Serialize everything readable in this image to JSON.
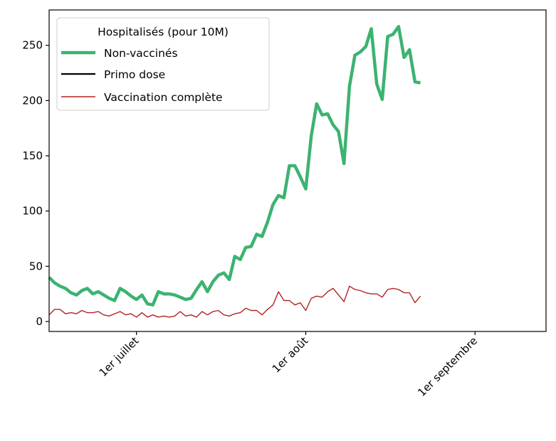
{
  "chart_data": {
    "type": "line",
    "legend": {
      "title": "Hospitalisés (pour 10M)",
      "placement": "top-left"
    },
    "xlim": [
      "2021-06-15",
      "2021-09-14"
    ],
    "ylim": [
      -9,
      282
    ],
    "grid": false,
    "x_ticks": [
      {
        "date": "2021-07-01",
        "label": "1er juillet"
      },
      {
        "date": "2021-08-01",
        "label": "1er août"
      },
      {
        "date": "2021-09-01",
        "label": "1er septembre"
      }
    ],
    "y_ticks": [
      0,
      50,
      100,
      150,
      200,
      250
    ],
    "series": [
      {
        "name": "Non-vaccinés",
        "color": "#3cb371",
        "x": [
          "2021-06-15",
          "2021-06-16",
          "2021-06-17",
          "2021-06-18",
          "2021-06-19",
          "2021-06-20",
          "2021-06-21",
          "2021-06-22",
          "2021-06-23",
          "2021-06-24",
          "2021-06-25",
          "2021-06-26",
          "2021-06-27",
          "2021-06-28",
          "2021-06-29",
          "2021-06-30",
          "2021-07-01",
          "2021-07-02",
          "2021-07-03",
          "2021-07-04",
          "2021-07-05",
          "2021-07-06",
          "2021-07-07",
          "2021-07-08",
          "2021-07-09",
          "2021-07-10",
          "2021-07-11",
          "2021-07-12",
          "2021-07-13",
          "2021-07-14",
          "2021-07-15",
          "2021-07-16",
          "2021-07-17",
          "2021-07-18",
          "2021-07-19",
          "2021-07-20",
          "2021-07-21",
          "2021-07-22",
          "2021-07-23",
          "2021-07-24",
          "2021-07-25",
          "2021-07-26",
          "2021-07-27",
          "2021-07-28",
          "2021-07-29",
          "2021-07-30",
          "2021-07-31",
          "2021-08-01",
          "2021-08-02",
          "2021-08-03",
          "2021-08-04",
          "2021-08-05",
          "2021-08-06",
          "2021-08-07",
          "2021-08-08",
          "2021-08-09",
          "2021-08-10",
          "2021-08-11",
          "2021-08-12",
          "2021-08-13",
          "2021-08-14",
          "2021-08-15",
          "2021-08-16",
          "2021-08-17",
          "2021-08-18",
          "2021-08-19",
          "2021-08-20",
          "2021-08-21",
          "2021-08-22"
        ],
        "y": [
          40,
          35,
          32,
          30,
          26,
          24,
          28,
          30,
          25,
          27,
          24,
          21,
          19,
          30,
          27,
          23,
          20,
          24,
          16,
          15,
          27,
          25,
          25,
          24,
          22,
          20,
          21,
          29,
          36,
          27,
          36,
          42,
          44,
          38,
          59,
          56,
          67,
          68,
          79,
          77,
          90,
          106,
          114,
          112,
          141,
          141,
          131,
          120,
          168,
          197,
          187,
          188,
          178,
          172,
          143,
          213,
          241,
          244,
          249,
          265,
          215,
          201,
          258,
          260,
          267,
          239,
          246,
          217,
          216
        ]
      },
      {
        "name": "Primo dose",
        "color": "#000000",
        "x": [],
        "y": []
      },
      {
        "name": "Vaccination complète",
        "color": "#b22222",
        "x": [
          "2021-06-15",
          "2021-06-16",
          "2021-06-17",
          "2021-06-18",
          "2021-06-19",
          "2021-06-20",
          "2021-06-21",
          "2021-06-22",
          "2021-06-23",
          "2021-06-24",
          "2021-06-25",
          "2021-06-26",
          "2021-06-27",
          "2021-06-28",
          "2021-06-29",
          "2021-06-30",
          "2021-07-01",
          "2021-07-02",
          "2021-07-03",
          "2021-07-04",
          "2021-07-05",
          "2021-07-06",
          "2021-07-07",
          "2021-07-08",
          "2021-07-09",
          "2021-07-10",
          "2021-07-11",
          "2021-07-12",
          "2021-07-13",
          "2021-07-14",
          "2021-07-15",
          "2021-07-16",
          "2021-07-17",
          "2021-07-18",
          "2021-07-19",
          "2021-07-20",
          "2021-07-21",
          "2021-07-22",
          "2021-07-23",
          "2021-07-24",
          "2021-07-25",
          "2021-07-26",
          "2021-07-27",
          "2021-07-28",
          "2021-07-29",
          "2021-07-30",
          "2021-07-31",
          "2021-08-01",
          "2021-08-02",
          "2021-08-03",
          "2021-08-04",
          "2021-08-05",
          "2021-08-06",
          "2021-08-07",
          "2021-08-08",
          "2021-08-09",
          "2021-08-10",
          "2021-08-11",
          "2021-08-12",
          "2021-08-13",
          "2021-08-14",
          "2021-08-15",
          "2021-08-16",
          "2021-08-17",
          "2021-08-18",
          "2021-08-19",
          "2021-08-20",
          "2021-08-21",
          "2021-08-22"
        ],
        "y": [
          6,
          11,
          11,
          7,
          8,
          7,
          10,
          8,
          8,
          9,
          6,
          5,
          7,
          9,
          6,
          7,
          4,
          8,
          4,
          6,
          4,
          5,
          4,
          5,
          9,
          5,
          6,
          4,
          9,
          6,
          9,
          10,
          6,
          5,
          7,
          8,
          12,
          10,
          10,
          6,
          11,
          15,
          27,
          19,
          19,
          15,
          17,
          10,
          21,
          23,
          22,
          27,
          30,
          24,
          18,
          32,
          29,
          28,
          26,
          25,
          25,
          22,
          29,
          30,
          29,
          26,
          26,
          17,
          23
        ]
      }
    ]
  }
}
